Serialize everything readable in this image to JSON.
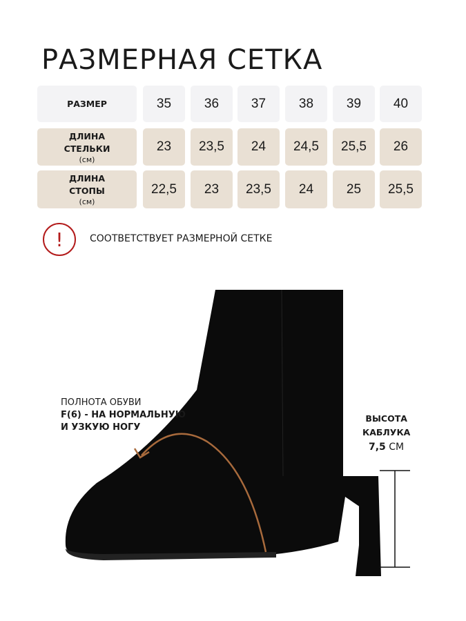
{
  "title": "РАЗМЕРНАЯ СЕТКА",
  "table": {
    "rows": [
      {
        "label": "РАЗМЕР",
        "unit": "",
        "values": [
          "35",
          "36",
          "37",
          "38",
          "39",
          "40"
        ]
      },
      {
        "label1": "ДЛИНА",
        "label2": "СТЕЛЬКИ",
        "unit": "(см)",
        "values": [
          "23",
          "23,5",
          "24",
          "24,5",
          "25,5",
          "26"
        ]
      },
      {
        "label1": "ДЛИНА",
        "label2": "СТОПЫ",
        "unit": "(см)",
        "values": [
          "22,5",
          "23",
          "23,5",
          "24",
          "25",
          "25,5"
        ]
      }
    ]
  },
  "note": "СООТВЕТСТВУЕТ РАЗМЕРНОЙ СЕТКЕ",
  "fullness": {
    "line1": "ПОЛНОТА ОБУВИ",
    "line2": "F(6) - НА НОРМАЛЬНУЮ",
    "line3": "И УЗКУЮ НОГУ"
  },
  "heel": {
    "line1": "ВЫСОТА",
    "line2": "КАБЛУКА",
    "value": "7,5",
    "unit": "СМ"
  },
  "colors": {
    "header": "#f3f3f5",
    "body": "#e9e0d4",
    "warning": "#b31b1b",
    "arrow": "#a86a3c"
  }
}
